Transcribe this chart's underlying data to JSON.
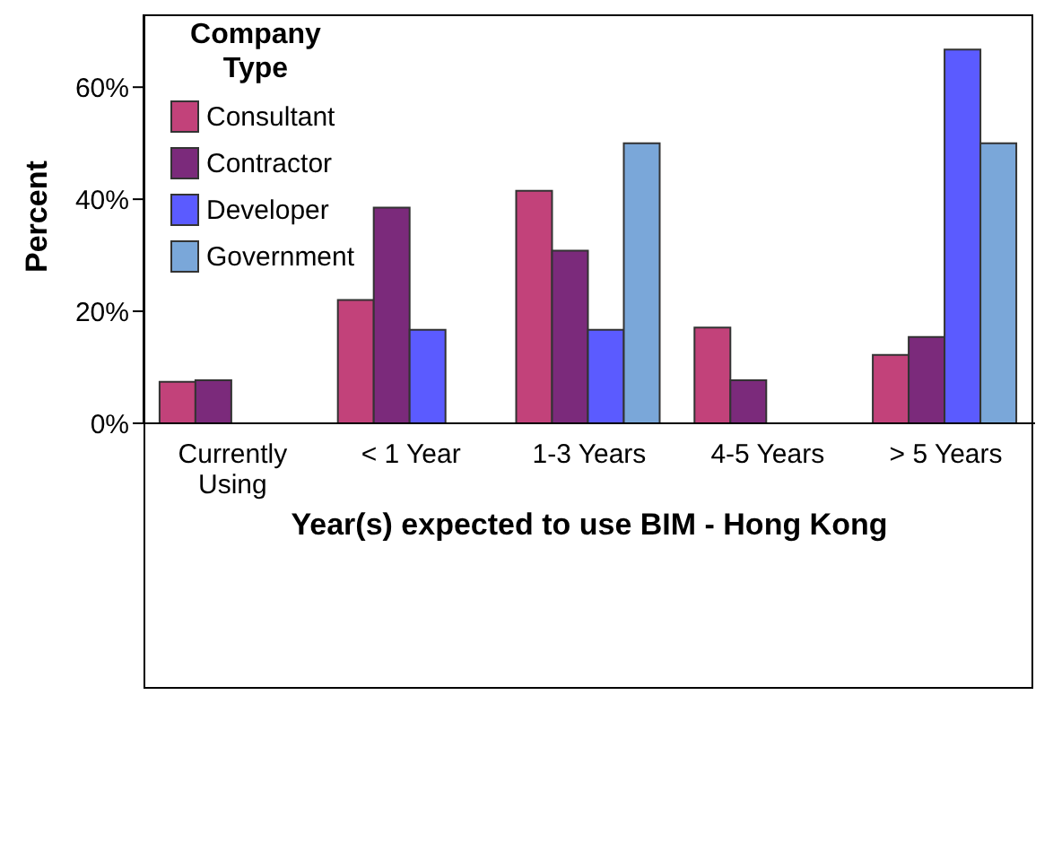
{
  "chart_data": {
    "type": "bar",
    "xlabel": "Year(s) expected to use BIM - Hong Kong",
    "ylabel": "Percent",
    "legend_title": "Company Type",
    "categories": [
      "Currently Using",
      "< 1 Year",
      "1-3 Years",
      "4-5 Years",
      "> 5 Years"
    ],
    "series": [
      {
        "name": "Consultant",
        "color": "#c2427a",
        "values": [
          7.4,
          22.0,
          41.5,
          17.1,
          12.2
        ]
      },
      {
        "name": "Contractor",
        "color": "#7b2a7b",
        "values": [
          7.7,
          38.5,
          30.8,
          7.7,
          15.4
        ]
      },
      {
        "name": "Developer",
        "color": "#5b5bff",
        "values": [
          0,
          16.7,
          16.7,
          0,
          66.7
        ]
      },
      {
        "name": "Government",
        "color": "#7aa7d9",
        "values": [
          0,
          0,
          50,
          0,
          50
        ]
      }
    ],
    "ylim": [
      0,
      73
    ],
    "yticks": [
      {
        "value": 0,
        "label": "0%"
      },
      {
        "value": 20,
        "label": "20%"
      },
      {
        "value": 40,
        "label": "40%"
      },
      {
        "value": 60,
        "label": "60%"
      }
    ],
    "grid": false,
    "legend": "top left"
  }
}
